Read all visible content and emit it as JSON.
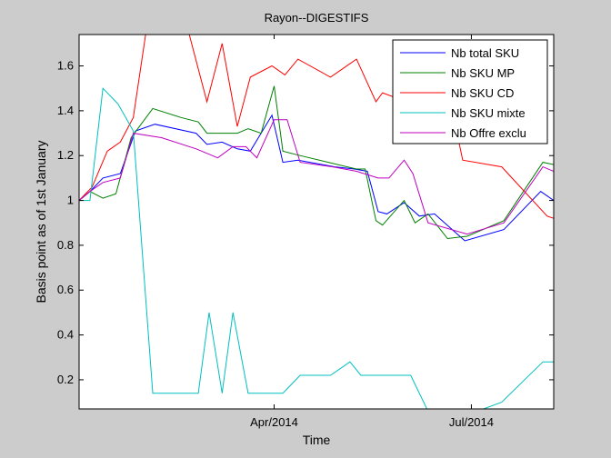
{
  "chart_data": {
    "type": "line",
    "title": "Rayon--DIGESTIFS",
    "xlabel": "Time",
    "ylabel": "Basis point as of 1st January",
    "x_ticks": [
      {
        "date": "2014-04-01",
        "label": "Apr/2014"
      },
      {
        "date": "2014-07-01",
        "label": "Jul/2014"
      }
    ],
    "xlim": [
      "2014-01-01",
      "2014-08-08"
    ],
    "ylim": [
      0.07,
      1.74
    ],
    "y_ticks": [
      0.2,
      0.4,
      0.6,
      0.8,
      1,
      1.2,
      1.4,
      1.6
    ],
    "y_tick_labels": [
      "0.2",
      "0.4",
      "0.6",
      "0.8",
      "1",
      "1.2",
      "1.4",
      "1.6"
    ],
    "grid": false,
    "legend_position": "top-right",
    "series": [
      {
        "name": "Nb total SKU",
        "color": "#0000ff",
        "points": [
          [
            "2014-01-01",
            1.0
          ],
          [
            "2014-01-06",
            1.04
          ],
          [
            "2014-01-12",
            1.1
          ],
          [
            "2014-01-20",
            1.12
          ],
          [
            "2014-01-27",
            1.31
          ],
          [
            "2014-02-05",
            1.34
          ],
          [
            "2014-02-24",
            1.3
          ],
          [
            "2014-03-01",
            1.25
          ],
          [
            "2014-03-08",
            1.26
          ],
          [
            "2014-03-15",
            1.23
          ],
          [
            "2014-03-21",
            1.22
          ],
          [
            "2014-03-31",
            1.38
          ],
          [
            "2014-04-05",
            1.17
          ],
          [
            "2014-04-12",
            1.18
          ],
          [
            "2014-04-29",
            1.15
          ],
          [
            "2014-05-08",
            1.14
          ],
          [
            "2014-05-14",
            1.13
          ],
          [
            "2014-05-19",
            0.95
          ],
          [
            "2014-05-23",
            0.94
          ],
          [
            "2014-05-31",
            0.99
          ],
          [
            "2014-06-07",
            0.93
          ],
          [
            "2014-06-14",
            0.94
          ],
          [
            "2014-06-28",
            0.82
          ],
          [
            "2014-07-16",
            0.87
          ],
          [
            "2014-08-02",
            1.04
          ],
          [
            "2014-08-08",
            1.0
          ]
        ]
      },
      {
        "name": "Nb SKU MP",
        "color": "#008000",
        "points": [
          [
            "2014-01-01",
            1.0
          ],
          [
            "2014-01-06",
            1.04
          ],
          [
            "2014-01-12",
            1.01
          ],
          [
            "2014-01-18",
            1.03
          ],
          [
            "2014-01-25",
            1.28
          ],
          [
            "2014-02-04",
            1.41
          ],
          [
            "2014-02-17",
            1.37
          ],
          [
            "2014-02-25",
            1.35
          ],
          [
            "2014-03-01",
            1.3
          ],
          [
            "2014-03-15",
            1.3
          ],
          [
            "2014-03-20",
            1.32
          ],
          [
            "2014-03-26",
            1.3
          ],
          [
            "2014-04-01",
            1.51
          ],
          [
            "2014-04-05",
            1.22
          ],
          [
            "2014-04-13",
            1.2
          ],
          [
            "2014-04-26",
            1.17
          ],
          [
            "2014-05-09",
            1.14
          ],
          [
            "2014-05-13",
            1.14
          ],
          [
            "2014-05-18",
            0.91
          ],
          [
            "2014-05-21",
            0.89
          ],
          [
            "2014-05-31",
            1.0
          ],
          [
            "2014-06-05",
            0.9
          ],
          [
            "2014-06-11",
            0.94
          ],
          [
            "2014-06-20",
            0.83
          ],
          [
            "2014-06-29",
            0.84
          ],
          [
            "2014-07-16",
            0.91
          ],
          [
            "2014-08-03",
            1.17
          ],
          [
            "2014-08-08",
            1.16
          ]
        ]
      },
      {
        "name": "Nb SKU CD",
        "color": "#ff0000",
        "points": [
          [
            "2014-01-01",
            1.0
          ],
          [
            "2014-01-07",
            1.06
          ],
          [
            "2014-01-14",
            1.22
          ],
          [
            "2014-01-20",
            1.26
          ],
          [
            "2014-01-26",
            1.37
          ],
          [
            "2014-02-01",
            1.76
          ],
          [
            "2014-02-10",
            1.82
          ],
          [
            "2014-02-20",
            1.77
          ],
          [
            "2014-03-01",
            1.44
          ],
          [
            "2014-03-08",
            1.7
          ],
          [
            "2014-03-15",
            1.33
          ],
          [
            "2014-03-21",
            1.55
          ],
          [
            "2014-03-31",
            1.6
          ],
          [
            "2014-04-06",
            1.56
          ],
          [
            "2014-04-12",
            1.63
          ],
          [
            "2014-04-27",
            1.55
          ],
          [
            "2014-05-09",
            1.63
          ],
          [
            "2014-05-18",
            1.44
          ],
          [
            "2014-05-21",
            1.48
          ],
          [
            "2014-06-01",
            1.44
          ],
          [
            "2014-06-11",
            1.5
          ],
          [
            "2014-06-20",
            1.5
          ],
          [
            "2014-06-27",
            1.18
          ],
          [
            "2014-07-15",
            1.15
          ],
          [
            "2014-08-05",
            0.93
          ],
          [
            "2014-08-08",
            0.92
          ]
        ]
      },
      {
        "name": "Nb SKU mixte",
        "color": "#00bfbf",
        "points": [
          [
            "2014-01-01",
            1.0
          ],
          [
            "2014-01-06",
            1.0
          ],
          [
            "2014-01-12",
            1.5
          ],
          [
            "2014-01-19",
            1.43
          ],
          [
            "2014-01-26",
            1.31
          ],
          [
            "2014-02-04",
            0.14
          ],
          [
            "2014-02-21",
            0.14
          ],
          [
            "2014-02-25",
            0.14
          ],
          [
            "2014-03-02",
            0.5
          ],
          [
            "2014-03-08",
            0.14
          ],
          [
            "2014-03-13",
            0.5
          ],
          [
            "2014-03-20",
            0.14
          ],
          [
            "2014-04-05",
            0.14
          ],
          [
            "2014-04-13",
            0.22
          ],
          [
            "2014-04-27",
            0.22
          ],
          [
            "2014-05-06",
            0.28
          ],
          [
            "2014-05-11",
            0.22
          ],
          [
            "2014-06-03",
            0.22
          ],
          [
            "2014-06-12",
            0.04
          ],
          [
            "2014-06-27",
            0.02
          ],
          [
            "2014-07-01",
            0.05
          ],
          [
            "2014-07-15",
            0.1
          ],
          [
            "2014-08-03",
            0.28
          ],
          [
            "2014-08-08",
            0.28
          ]
        ]
      },
      {
        "name": "Nb Offre exclu",
        "color": "#bf00bf",
        "points": [
          [
            "2014-01-01",
            1.0
          ],
          [
            "2014-01-06",
            1.04
          ],
          [
            "2014-01-12",
            1.08
          ],
          [
            "2014-01-20",
            1.1
          ],
          [
            "2014-01-26",
            1.3
          ],
          [
            "2014-02-08",
            1.28
          ],
          [
            "2014-02-24",
            1.23
          ],
          [
            "2014-03-06",
            1.19
          ],
          [
            "2014-03-13",
            1.24
          ],
          [
            "2014-03-19",
            1.24
          ],
          [
            "2014-03-24",
            1.19
          ],
          [
            "2014-04-01",
            1.36
          ],
          [
            "2014-04-07",
            1.36
          ],
          [
            "2014-04-13",
            1.17
          ],
          [
            "2014-04-28",
            1.15
          ],
          [
            "2014-05-09",
            1.13
          ],
          [
            "2014-05-19",
            1.1
          ],
          [
            "2014-05-24",
            1.1
          ],
          [
            "2014-05-31",
            1.18
          ],
          [
            "2014-06-04",
            1.12
          ],
          [
            "2014-06-11",
            0.9
          ],
          [
            "2014-06-29",
            0.85
          ],
          [
            "2014-07-16",
            0.9
          ],
          [
            "2014-08-03",
            1.15
          ],
          [
            "2014-08-08",
            1.13
          ]
        ]
      }
    ]
  }
}
